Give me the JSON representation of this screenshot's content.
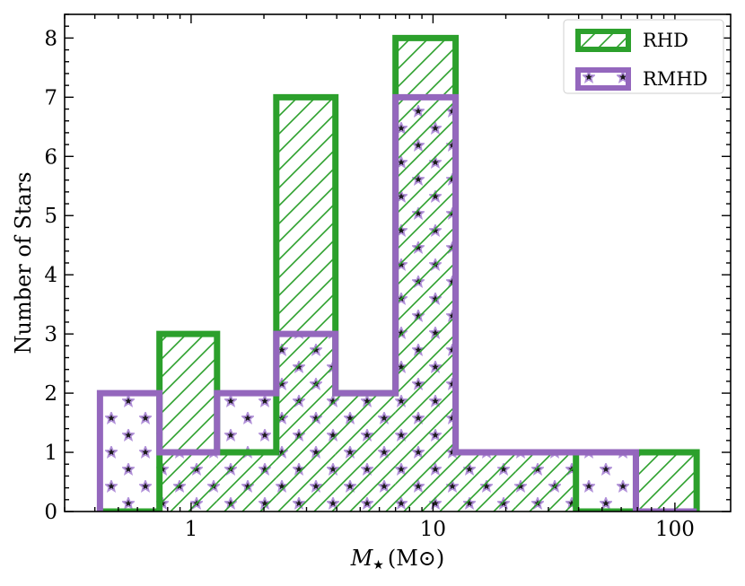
{
  "chart_data": {
    "type": "histogram",
    "xlabel": "M★ (M⊙)",
    "xlabel_parts": {
      "symbol": "M",
      "subscript": "★",
      "unit": "(M⊙)"
    },
    "ylabel": "Number of Stars",
    "xscale": "log",
    "xlim": [
      0.3,
      170
    ],
    "ylim": [
      0,
      8.4
    ],
    "xticks": [
      {
        "value": 1,
        "label": "1"
      },
      {
        "value": 10,
        "label": "10"
      },
      {
        "value": 100,
        "label": "100"
      }
    ],
    "yticks": [
      {
        "value": 0,
        "label": "0"
      },
      {
        "value": 1,
        "label": "1"
      },
      {
        "value": 2,
        "label": "2"
      },
      {
        "value": 3,
        "label": "3"
      },
      {
        "value": 4,
        "label": "4"
      },
      {
        "value": 5,
        "label": "5"
      },
      {
        "value": 6,
        "label": "6"
      },
      {
        "value": 7,
        "label": "7"
      },
      {
        "value": 8,
        "label": "8"
      }
    ],
    "bin_edges": [
      0.42,
      0.74,
      1.28,
      2.25,
      3.95,
      7.0,
      12.4,
      22.0,
      39.0,
      69.0,
      123.0
    ],
    "series": [
      {
        "name": "RHD",
        "color": "#2ca02c",
        "hatch": "diagonal",
        "counts": [
          0,
          3,
          1,
          7,
          2,
          8,
          1,
          1,
          0,
          1
        ]
      },
      {
        "name": "RMHD",
        "color": "#9467bd",
        "hatch": "stars",
        "counts": [
          2,
          1,
          2,
          3,
          2,
          7,
          1,
          1,
          1,
          0
        ]
      }
    ],
    "legend_position": "top-right",
    "grid": false
  }
}
